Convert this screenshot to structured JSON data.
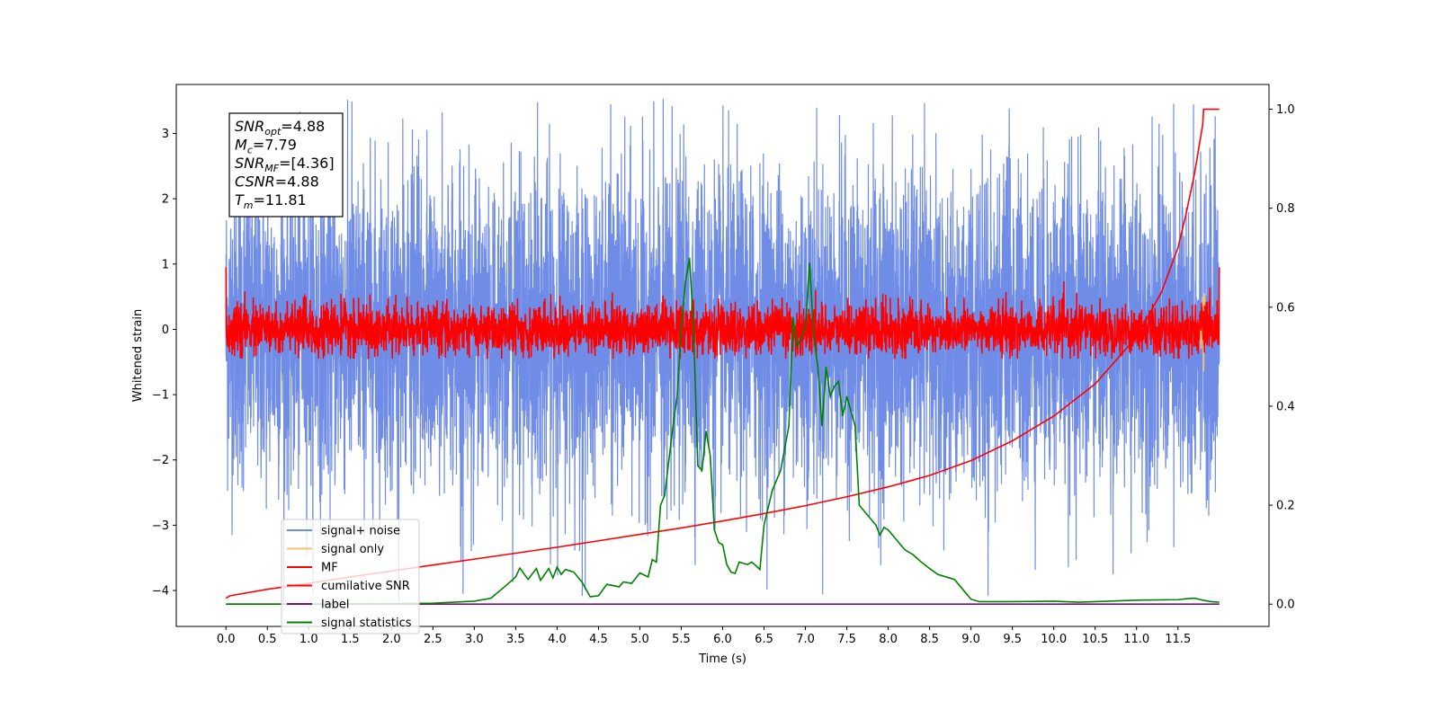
{
  "chart_data": {
    "type": "line",
    "xlabel": "Time (s)",
    "ylabel": "Whitened strain",
    "xlim": [
      -0.6,
      12.6
    ],
    "ylim": [
      -4.55,
      3.75
    ],
    "y2lim": [
      -0.045,
      1.05
    ],
    "x_ticks": [
      "0.0",
      "0.5",
      "1.0",
      "1.5",
      "2.0",
      "2.5",
      "3.0",
      "3.5",
      "4.0",
      "4.5",
      "5.0",
      "5.5",
      "6.0",
      "6.5",
      "7.0",
      "7.5",
      "8.0",
      "8.5",
      "9.0",
      "9.5",
      "10.0",
      "10.5",
      "11.0",
      "11.5"
    ],
    "y_ticks": [
      "3",
      "2",
      "1",
      "0",
      "−1",
      "−2",
      "−3",
      "−4"
    ],
    "y2_ticks": [
      "1.0",
      "0.8",
      "0.6",
      "0.4",
      "0.2",
      "0.0"
    ],
    "legend_position": "lower left",
    "stats_box": {
      "lines": [
        {
          "sym": "SNR",
          "sub": "opt",
          "val": "=4.88"
        },
        {
          "sym": "M",
          "sub": "c",
          "val": "=7.79"
        },
        {
          "sym": "SNR",
          "sub": "MF",
          "val": "=[4.36]"
        },
        {
          "sym": "CSNR",
          "sub": "",
          "val": "=4.88"
        },
        {
          "sym": "T",
          "sub": "m",
          "val": "=11.81"
        }
      ]
    },
    "series": [
      {
        "name": "signal+ noise",
        "color": "#6f8ce6",
        "axis": "left",
        "description_values": {
          "x_range": [
            0.0,
            12.0
          ],
          "typical_abs": 1.2,
          "peak_max": 3.55,
          "peak_min": -4.25
        }
      },
      {
        "name": "signal only",
        "color": "#f5c36b",
        "axis": "left",
        "x": [
          11.72,
          11.76,
          11.78,
          11.8,
          11.81,
          11.82,
          11.84,
          11.86,
          11.9
        ],
        "y": [
          0.0,
          0.15,
          -0.3,
          0.5,
          -0.65,
          0.55,
          -0.2,
          0.1,
          0.0
        ]
      },
      {
        "name": "MF",
        "color": "#ff0000",
        "axis": "left",
        "description_values": {
          "x_range": [
            0.0,
            12.0
          ],
          "typical_abs": 0.35,
          "peak_max": 0.95,
          "peak_min": -0.45
        }
      },
      {
        "name": "cumilative SNR",
        "color": "#ff0000",
        "axis": "right",
        "x": [
          0.0,
          0.05,
          0.5,
          1.0,
          1.5,
          2.0,
          2.5,
          3.0,
          3.5,
          4.0,
          4.5,
          5.0,
          5.5,
          6.0,
          6.5,
          7.0,
          7.5,
          8.0,
          8.5,
          9.0,
          9.5,
          10.0,
          10.5,
          11.0,
          11.3,
          11.5,
          11.6,
          11.7,
          11.75,
          11.8,
          11.81,
          12.0
        ],
        "y": [
          0.012,
          0.017,
          0.03,
          0.042,
          0.055,
          0.067,
          0.079,
          0.091,
          0.103,
          0.115,
          0.128,
          0.141,
          0.154,
          0.168,
          0.183,
          0.199,
          0.217,
          0.237,
          0.26,
          0.29,
          0.33,
          0.38,
          0.445,
          0.54,
          0.63,
          0.72,
          0.79,
          0.87,
          0.92,
          0.97,
          1.0,
          1.0
        ]
      },
      {
        "name": "label",
        "color": "#7b0f7b",
        "axis": "right",
        "x": [
          0.0,
          12.0
        ],
        "y": [
          0.0,
          0.0
        ]
      },
      {
        "name": "signal statistics",
        "color": "#008000",
        "axis": "right",
        "x": [
          0.0,
          1.0,
          2.0,
          2.5,
          3.0,
          3.2,
          3.4,
          3.5,
          3.55,
          3.65,
          3.75,
          3.8,
          3.9,
          3.95,
          4.0,
          4.05,
          4.1,
          4.2,
          4.3,
          4.4,
          4.5,
          4.6,
          4.75,
          4.8,
          4.9,
          5.0,
          5.1,
          5.15,
          5.2,
          5.25,
          5.3,
          5.4,
          5.45,
          5.5,
          5.55,
          5.6,
          5.65,
          5.7,
          5.75,
          5.8,
          5.85,
          5.9,
          5.95,
          6.0,
          6.05,
          6.1,
          6.15,
          6.2,
          6.3,
          6.35,
          6.4,
          6.45,
          6.5,
          6.6,
          6.7,
          6.8,
          6.85,
          6.9,
          6.95,
          7.0,
          7.05,
          7.1,
          7.15,
          7.2,
          7.25,
          7.3,
          7.35,
          7.4,
          7.45,
          7.5,
          7.6,
          7.65,
          7.7,
          7.75,
          7.8,
          7.85,
          7.9,
          7.95,
          8.0,
          8.1,
          8.2,
          8.3,
          8.4,
          8.5,
          8.6,
          8.7,
          8.8,
          8.9,
          9.0,
          9.1,
          9.5,
          10.0,
          10.3,
          10.5,
          11.0,
          11.5,
          11.6,
          11.7,
          11.8,
          11.9,
          12.0
        ],
        "y": [
          0.0,
          0.0,
          0.001,
          0.002,
          0.006,
          0.012,
          0.04,
          0.055,
          0.073,
          0.05,
          0.072,
          0.048,
          0.072,
          0.053,
          0.075,
          0.06,
          0.07,
          0.065,
          0.045,
          0.015,
          0.017,
          0.04,
          0.035,
          0.045,
          0.042,
          0.063,
          0.055,
          0.09,
          0.085,
          0.2,
          0.22,
          0.36,
          0.42,
          0.56,
          0.65,
          0.7,
          0.55,
          0.28,
          0.27,
          0.35,
          0.3,
          0.15,
          0.125,
          0.12,
          0.08,
          0.065,
          0.062,
          0.085,
          0.08,
          0.085,
          0.078,
          0.07,
          0.16,
          0.23,
          0.27,
          0.36,
          0.58,
          0.52,
          0.54,
          0.56,
          0.69,
          0.54,
          0.48,
          0.36,
          0.48,
          0.42,
          0.44,
          0.45,
          0.38,
          0.42,
          0.36,
          0.2,
          0.19,
          0.18,
          0.17,
          0.16,
          0.14,
          0.155,
          0.15,
          0.13,
          0.11,
          0.1,
          0.085,
          0.072,
          0.06,
          0.055,
          0.05,
          0.03,
          0.01,
          0.005,
          0.005,
          0.006,
          0.004,
          0.005,
          0.008,
          0.009,
          0.011,
          0.012,
          0.008,
          0.005,
          0.004
        ]
      }
    ]
  }
}
